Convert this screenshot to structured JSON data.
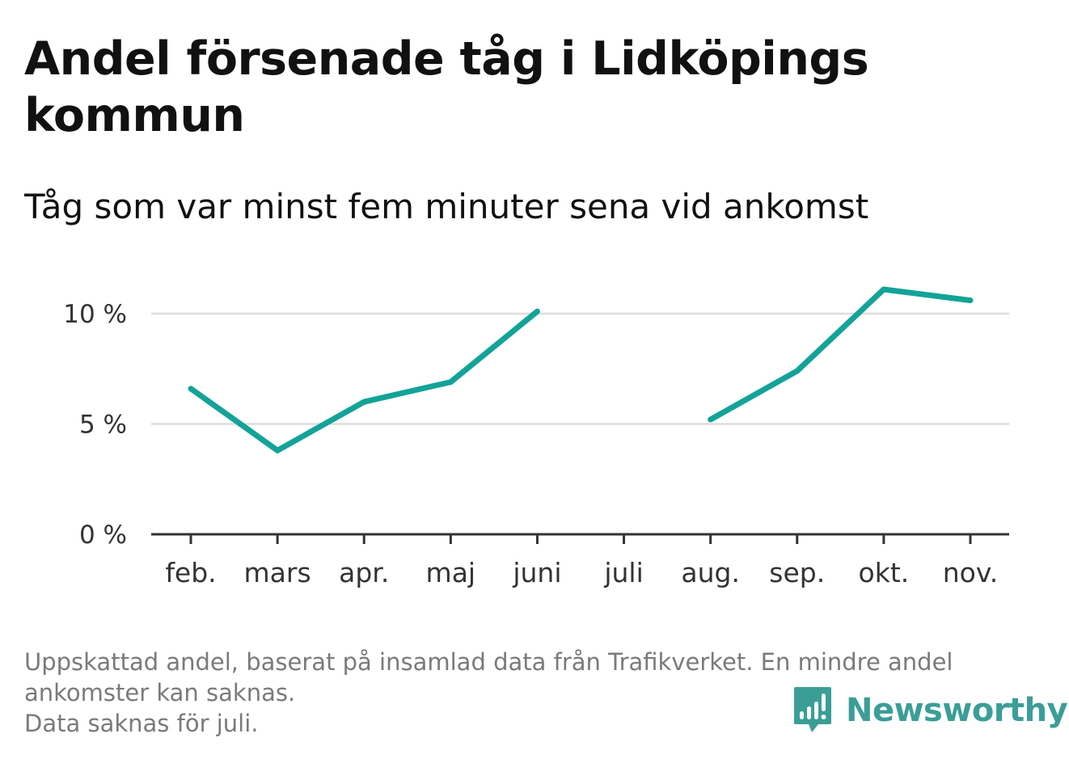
{
  "header": {
    "title": "Andel försenade tåg i Lidköpings kommun",
    "subtitle": "Tåg som var minst fem minuter sena vid ankomst"
  },
  "footer": {
    "note_line1": "Uppskattad andel, baserat på insamlad data från Trafikverket. En mindre andel",
    "note_line2": "ankomster kan saknas.",
    "note_line3": "Data saknas för juli.",
    "brand": "Newsworthy",
    "brand_icon": "newsworthy-logo-icon"
  },
  "colors": {
    "line": "#13a398",
    "grid": "#dddddd",
    "axis": "#333333",
    "brand": "#3a9e97"
  },
  "chart_data": {
    "type": "line",
    "title": "Andel försenade tåg i Lidköpings kommun",
    "subtitle": "Tåg som var minst fem minuter sena vid ankomst",
    "categories": [
      "feb.",
      "mars",
      "apr.",
      "maj",
      "juni",
      "juli",
      "aug.",
      "sep.",
      "okt.",
      "nov."
    ],
    "series": [
      {
        "values": [
          6.6,
          3.8,
          6.0,
          6.9,
          10.1,
          null,
          5.2,
          7.4,
          11.1,
          10.6
        ]
      }
    ],
    "yticks": [
      0,
      5,
      10
    ],
    "ytick_labels": [
      "0 %",
      "5 %",
      "10 %"
    ],
    "ylim": [
      0,
      12
    ],
    "grid": true,
    "legend": "none"
  }
}
